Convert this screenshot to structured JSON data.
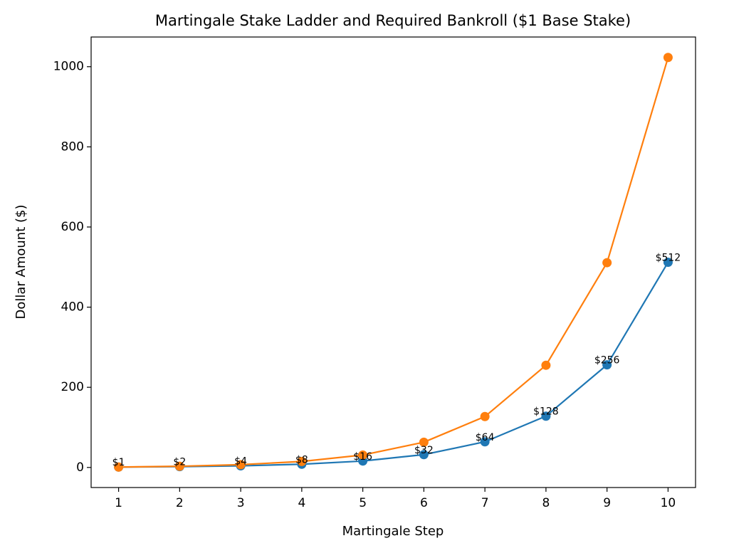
{
  "chart_data": {
    "type": "line",
    "title": "Martingale Stake Ladder and Required Bankroll ($1 Base Stake)",
    "x_label": "Martingale Step",
    "y_label": "Dollar Amount ($)",
    "x": [
      1,
      2,
      3,
      4,
      5,
      6,
      7,
      8,
      9,
      10
    ],
    "series": [
      {
        "color": "#1f77b4",
        "values": [
          1,
          2,
          4,
          8,
          16,
          32,
          64,
          128,
          256,
          512
        ],
        "value_labels": [
          "$1",
          "$2",
          "$4",
          "$8",
          "$16",
          "$32",
          "$64",
          "$128",
          "$256",
          "$512"
        ]
      },
      {
        "color": "#ff7f0e",
        "values": [
          1,
          3,
          7,
          15,
          31,
          63,
          127,
          255,
          511,
          1023
        ]
      }
    ],
    "xlim": [
      0.55,
      10.45
    ],
    "ylim": [
      -50.1,
      1074.1
    ],
    "xticks": [
      1,
      2,
      3,
      4,
      5,
      6,
      7,
      8,
      9,
      10
    ],
    "yticks": [
      0,
      200,
      400,
      600,
      800,
      1000
    ]
  }
}
